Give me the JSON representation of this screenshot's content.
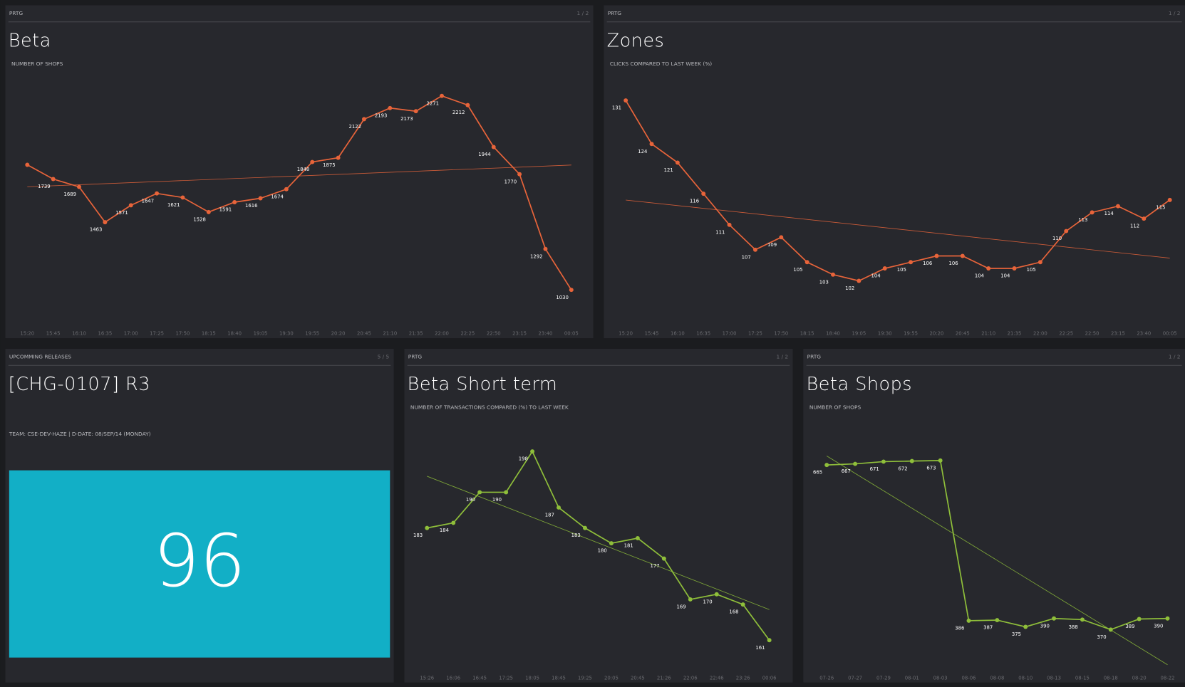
{
  "panels": [
    {
      "header": "PRTG",
      "page": "1 / 2",
      "title": "Beta",
      "subtitle": "NUMBER OF SHOPS",
      "chart_data": {
        "type": "line",
        "color": "#e8643a",
        "categories": [
          "15:20",
          "15:45",
          "16:10",
          "16:35",
          "17:00",
          "17:25",
          "17:50",
          "18:15",
          "18:40",
          "19:05",
          "19:30",
          "19:55",
          "20:20",
          "20:45",
          "21:10",
          "21:35",
          "22:00",
          "22:25",
          "22:50",
          "23:15",
          "23:40",
          "00:05"
        ],
        "values": [
          1830,
          1739,
          1689,
          1463,
          1571,
          1647,
          1621,
          1528,
          1591,
          1616,
          1674,
          1848,
          1875,
          2122,
          2193,
          2173,
          2271,
          2212,
          1944,
          1770,
          1292,
          1030
        ],
        "value_labels": [
          null,
          "1739",
          "1689",
          "1463",
          "1571",
          "1647",
          "1621",
          "1528",
          "1591",
          "1616",
          "1674",
          "1848",
          "1875",
          "2122",
          "2193",
          "2173",
          "2271",
          "2212",
          "1944",
          "1770",
          "1292",
          "1030"
        ]
      }
    },
    {
      "header": "PRTG",
      "page": "1 / 2",
      "title": "Zones",
      "subtitle": "CLICKS COMPARED TO LAST WEEK (%)",
      "chart_data": {
        "type": "line",
        "color": "#e8643a",
        "categories": [
          "15:20",
          "15:45",
          "16:10",
          "16:35",
          "17:00",
          "17:25",
          "17:50",
          "18:15",
          "18:40",
          "19:05",
          "19:30",
          "19:55",
          "20:20",
          "20:45",
          "21:10",
          "21:35",
          "22:00",
          "22:25",
          "22:50",
          "23:15",
          "23:40",
          "00:05"
        ],
        "values": [
          131,
          124,
          121,
          116,
          111,
          107,
          109,
          105,
          103,
          102,
          104,
          105,
          106,
          106,
          104,
          104,
          105,
          110,
          113,
          114,
          112,
          115
        ]
      }
    },
    {
      "header": "UPCOMMING RELEASES",
      "page": "5 / 5",
      "title": "[CHG-0107] R3",
      "subtitle": "TEAM: CSE-DEV-HAZE | D-DATE: 08/SEP/14 (MONDAY)",
      "value": 96
    },
    {
      "header": "PRTG",
      "page": "1 / 2",
      "title": "Beta Short term",
      "subtitle": "NUMBER OF TRANSACTIONS COMPARED (%) TO LAST WEEK",
      "chart_data": {
        "type": "line",
        "color": "#8fbf3a",
        "categories": [
          "15:26",
          "16:06",
          "16:45",
          "17:25",
          "18:05",
          "18:45",
          "19:25",
          "20:05",
          "20:45",
          "21:26",
          "22:06",
          "22:46",
          "23:26",
          "00:06"
        ],
        "values": [
          183,
          184,
          190,
          190,
          198,
          187,
          183,
          180,
          181,
          177,
          169,
          170,
          168,
          161
        ]
      }
    },
    {
      "header": "PRTG",
      "page": "1 / 2",
      "title": "Beta Shops",
      "subtitle": "NUMBER OF SHOPS",
      "chart_data": {
        "type": "line",
        "color": "#8fbf3a",
        "categories": [
          "07-26",
          "07-27",
          "07-29",
          "08-01",
          "08-03",
          "08-06",
          "08-08",
          "08-10",
          "08-13",
          "08-15",
          "08-18",
          "08-20",
          "08-22"
        ],
        "values": [
          665,
          667,
          671,
          672,
          673,
          386,
          387,
          375,
          390,
          388,
          370,
          389,
          390
        ]
      }
    }
  ]
}
